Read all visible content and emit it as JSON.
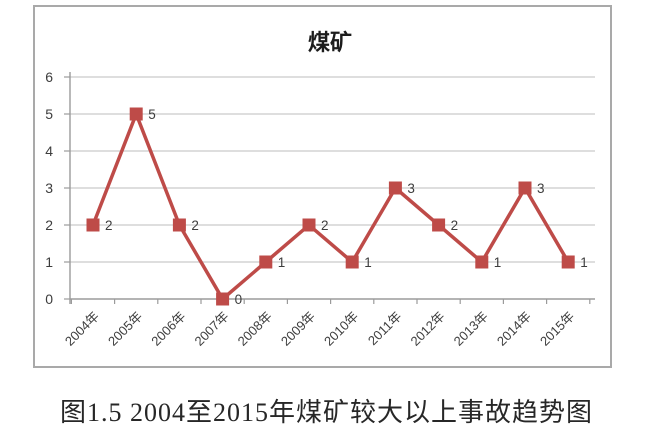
{
  "chart_data": {
    "type": "line",
    "title": "煤矿",
    "categories": [
      "2004年",
      "2005年",
      "2006年",
      "2007年",
      "2008年",
      "2009年",
      "2010年",
      "2011年",
      "2012年",
      "2013年",
      "2014年",
      "2015年"
    ],
    "values": [
      2,
      5,
      2,
      0,
      1,
      2,
      1,
      3,
      2,
      1,
      3,
      1
    ],
    "xlabel": "",
    "ylabel": "",
    "ylim": [
      0,
      6
    ],
    "yticks": [
      0,
      1,
      2,
      3,
      4,
      5,
      6
    ],
    "grid": true,
    "legend": false,
    "marker": "square",
    "data_labels": true,
    "series_color": "#be4b48",
    "gridline_color": "#c9c9c9",
    "axis_color": "#9b9b9b",
    "frame_color": "#a9a9a9",
    "tick_label_color": "#3d3d3d",
    "data_label_color": "#3d3d3d"
  },
  "caption": "图1.5 2004至2015年煤矿较大以上事故趋势图"
}
